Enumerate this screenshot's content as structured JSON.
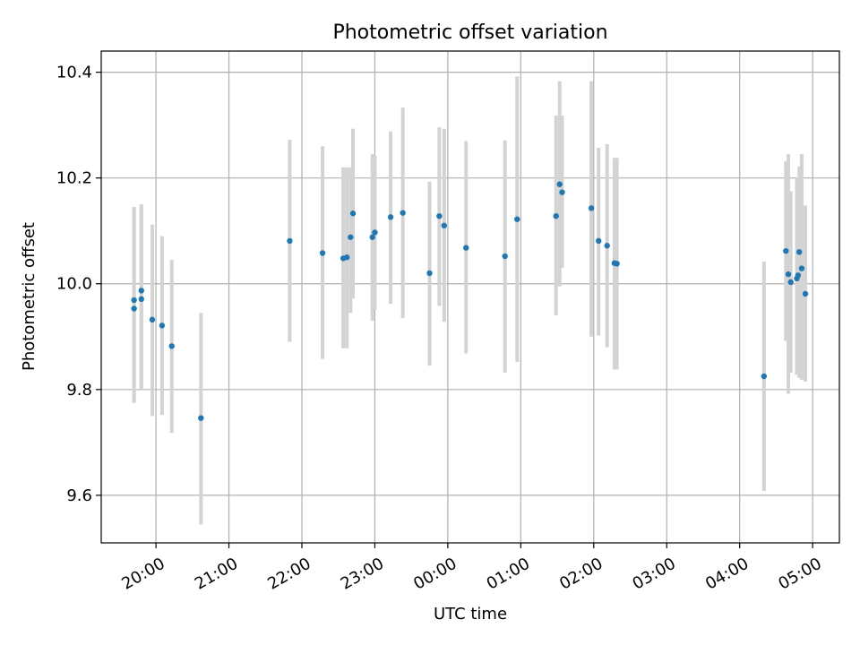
{
  "chart_data": {
    "type": "scatter",
    "title": "Photometric offset variation",
    "xlabel": "UTC time",
    "ylabel": "Photometric offset",
    "x_tick_labels": [
      "20:00",
      "21:00",
      "22:00",
      "23:00",
      "00:00",
      "01:00",
      "02:00",
      "03:00",
      "04:00",
      "05:00"
    ],
    "y_tick_labels": [
      "9.6",
      "9.8",
      "10.0",
      "10.2",
      "10.4"
    ],
    "x_ticks": [
      0,
      60,
      120,
      180,
      240,
      300,
      360,
      420,
      480,
      540
    ],
    "y_ticks": [
      9.6,
      9.8,
      10.0,
      10.2,
      10.4
    ],
    "xlim": [
      -45,
      562
    ],
    "ylim": [
      9.51,
      10.44
    ],
    "x_units": "minutes after 20:00 UTC",
    "grid": true,
    "errorbar_color": "#d3d3d3",
    "point_color": "#1f77b4",
    "points": [
      {
        "x": -18,
        "y": 9.953,
        "lo": 9.775,
        "hi": 10.145
      },
      {
        "x": -18,
        "y": 9.969,
        "lo": 9.775,
        "hi": 10.145
      },
      {
        "x": -12,
        "y": 9.987,
        "lo": 9.8,
        "hi": 10.15
      },
      {
        "x": -12,
        "y": 9.971,
        "lo": 9.8,
        "hi": 10.15
      },
      {
        "x": -3,
        "y": 9.932,
        "lo": 9.75,
        "hi": 10.112
      },
      {
        "x": 5,
        "y": 9.921,
        "lo": 9.752,
        "hi": 10.09
      },
      {
        "x": 13,
        "y": 9.882,
        "lo": 9.718,
        "hi": 10.045
      },
      {
        "x": 37,
        "y": 9.746,
        "lo": 9.545,
        "hi": 9.945
      },
      {
        "x": 110,
        "y": 10.081,
        "lo": 9.89,
        "hi": 10.272
      },
      {
        "x": 137,
        "y": 10.058,
        "lo": 9.858,
        "hi": 10.26
      },
      {
        "x": 154,
        "y": 10.048,
        "lo": 9.878,
        "hi": 10.22
      },
      {
        "x": 157,
        "y": 10.05,
        "lo": 9.878,
        "hi": 10.22
      },
      {
        "x": 160,
        "y": 10.088,
        "lo": 9.945,
        "hi": 10.22
      },
      {
        "x": 162,
        "y": 10.133,
        "lo": 9.972,
        "hi": 10.293
      },
      {
        "x": 178,
        "y": 10.088,
        "lo": 9.93,
        "hi": 10.245
      },
      {
        "x": 180,
        "y": 10.097,
        "lo": 9.95,
        "hi": 10.242
      },
      {
        "x": 193,
        "y": 10.126,
        "lo": 9.962,
        "hi": 10.288
      },
      {
        "x": 203,
        "y": 10.134,
        "lo": 9.935,
        "hi": 10.333
      },
      {
        "x": 225,
        "y": 10.02,
        "lo": 9.845,
        "hi": 10.193
      },
      {
        "x": 233,
        "y": 10.128,
        "lo": 9.958,
        "hi": 10.296
      },
      {
        "x": 237,
        "y": 10.11,
        "lo": 9.928,
        "hi": 10.293
      },
      {
        "x": 255,
        "y": 10.068,
        "lo": 9.868,
        "hi": 10.27
      },
      {
        "x": 287,
        "y": 10.052,
        "lo": 9.832,
        "hi": 10.271
      },
      {
        "x": 297,
        "y": 10.122,
        "lo": 9.852,
        "hi": 10.392
      },
      {
        "x": 329,
        "y": 10.128,
        "lo": 9.94,
        "hi": 10.318
      },
      {
        "x": 332,
        "y": 10.188,
        "lo": 9.995,
        "hi": 10.383
      },
      {
        "x": 334,
        "y": 10.173,
        "lo": 10.03,
        "hi": 10.318
      },
      {
        "x": 358,
        "y": 10.143,
        "lo": 9.9,
        "hi": 10.383
      },
      {
        "x": 364,
        "y": 10.081,
        "lo": 9.902,
        "hi": 10.257
      },
      {
        "x": 371,
        "y": 10.072,
        "lo": 9.88,
        "hi": 10.264
      },
      {
        "x": 377,
        "y": 10.039,
        "lo": 9.838,
        "hi": 10.238
      },
      {
        "x": 379,
        "y": 10.038,
        "lo": 9.838,
        "hi": 10.238
      },
      {
        "x": 500,
        "y": 9.825,
        "lo": 9.608,
        "hi": 10.042
      },
      {
        "x": 518,
        "y": 10.062,
        "lo": 9.892,
        "hi": 10.232
      },
      {
        "x": 520,
        "y": 10.018,
        "lo": 9.792,
        "hi": 10.245
      },
      {
        "x": 522,
        "y": 10.003,
        "lo": 9.832,
        "hi": 10.175
      },
      {
        "x": 527,
        "y": 10.01,
        "lo": 9.828,
        "hi": 10.2
      },
      {
        "x": 528,
        "y": 10.016,
        "lo": 9.828,
        "hi": 10.2
      },
      {
        "x": 529,
        "y": 10.06,
        "lo": 9.822,
        "hi": 10.222
      },
      {
        "x": 531,
        "y": 10.029,
        "lo": 9.818,
        "hi": 10.245
      },
      {
        "x": 534,
        "y": 9.981,
        "lo": 9.815,
        "hi": 10.148
      }
    ]
  }
}
